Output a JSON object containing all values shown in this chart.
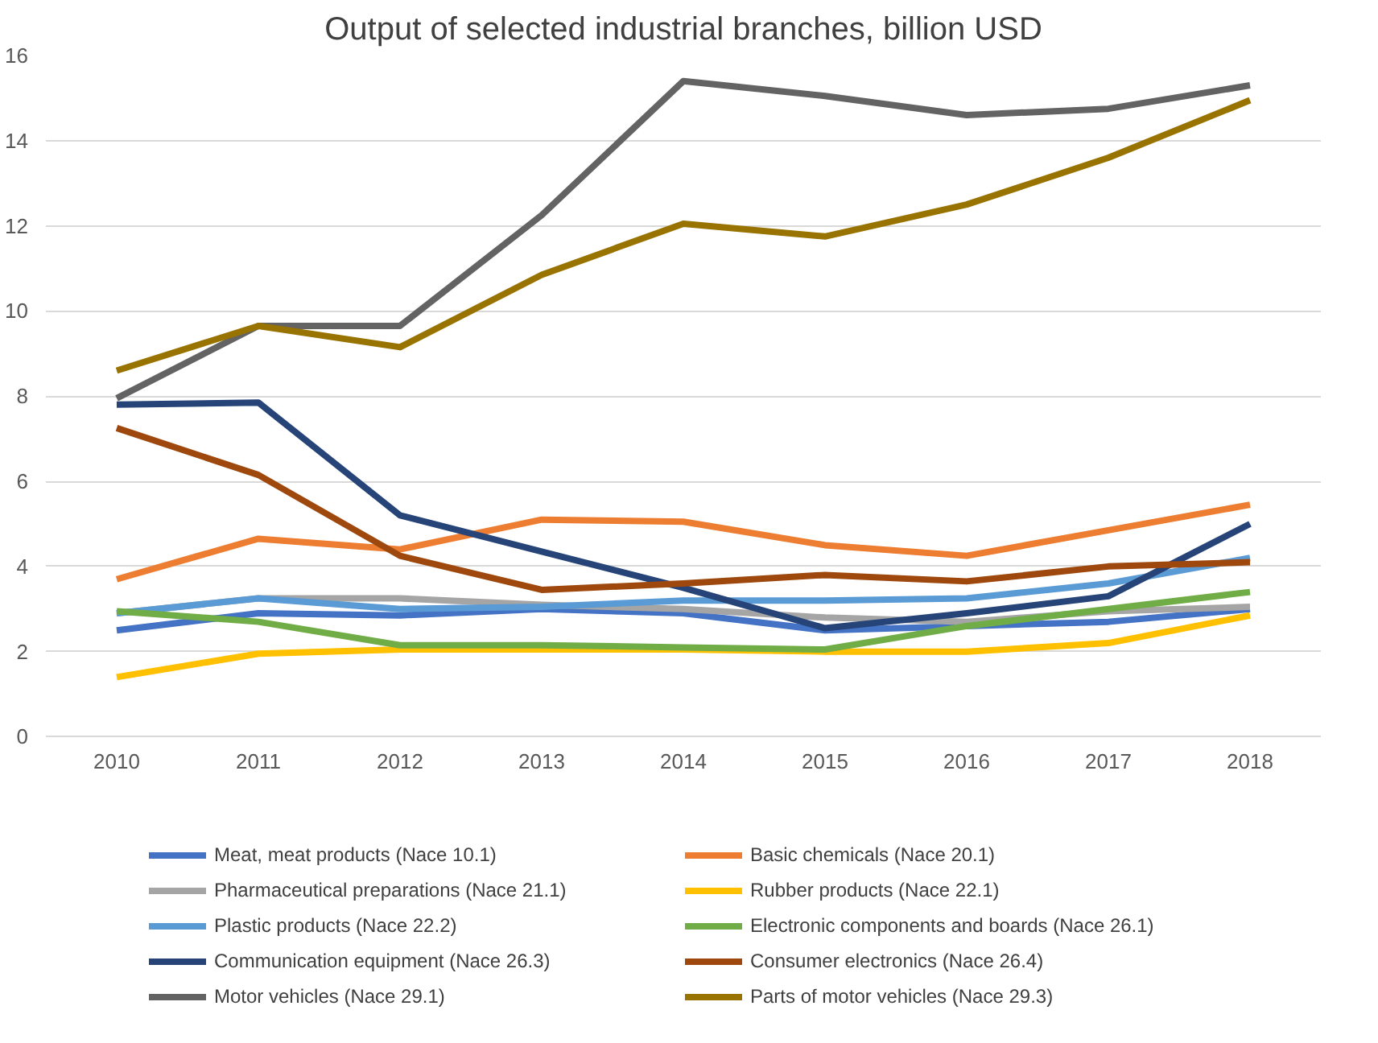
{
  "chart_data": {
    "type": "line",
    "title": "Output of selected industrial branches, billion USD",
    "x": [
      2010,
      2011,
      2012,
      2013,
      2014,
      2015,
      2016,
      2017,
      2018
    ],
    "xticks": [
      2010,
      2011,
      2012,
      2013,
      2014,
      2015,
      2016,
      2017,
      2018
    ],
    "xlim": [
      2009.5,
      2018.5
    ],
    "ylim": [
      0,
      16
    ],
    "yticks": [
      0,
      2,
      4,
      6,
      8,
      10,
      12,
      14,
      16
    ],
    "grid": "y",
    "legend": "bottom",
    "marker": "none",
    "line_style": "solid",
    "series": [
      {
        "name": "Meat, meat products (Nace 10.1)",
        "color": "#4472c4",
        "values": [
          2.5,
          2.9,
          2.85,
          3.0,
          2.9,
          2.5,
          2.6,
          2.7,
          3.0
        ]
      },
      {
        "name": "Basic chemicals (Nace 20.1)",
        "color": "#ed7d31",
        "values": [
          3.7,
          4.65,
          4.4,
          5.1,
          5.05,
          4.5,
          4.25,
          4.85,
          5.45
        ]
      },
      {
        "name": "Pharmaceutical preparations (Nace 21.1)",
        "color": "#a5a5a5",
        "values": [
          2.9,
          3.25,
          3.25,
          3.1,
          3.0,
          2.8,
          2.7,
          2.95,
          3.05
        ]
      },
      {
        "name": "Rubber products (Nace 22.1)",
        "color": "#ffc000",
        "values": [
          1.4,
          1.95,
          2.05,
          2.05,
          2.05,
          2.0,
          2.0,
          2.2,
          2.85
        ]
      },
      {
        "name": "Plastic products (Nace 22.2)",
        "color": "#5b9bd5",
        "values": [
          2.9,
          3.25,
          3.0,
          3.05,
          3.2,
          3.2,
          3.25,
          3.6,
          4.2
        ]
      },
      {
        "name": "Electronic components and boards (Nace 26.1)",
        "color": "#70ad47",
        "values": [
          2.95,
          2.7,
          2.15,
          2.15,
          2.1,
          2.05,
          2.6,
          3.0,
          3.4
        ]
      },
      {
        "name": "Communication equipment (Nace 26.3)",
        "color": "#264478",
        "values": [
          7.8,
          7.85,
          5.2,
          4.35,
          3.5,
          2.55,
          2.9,
          3.3,
          5.0
        ]
      },
      {
        "name": "Consumer electronics (Nace 26.4)",
        "color": "#9e480e",
        "values": [
          7.25,
          6.15,
          4.25,
          3.45,
          3.6,
          3.8,
          3.65,
          4.0,
          4.1
        ]
      },
      {
        "name": "Motor vehicles (Nace 29.1)",
        "color": "#636363",
        "values": [
          7.95,
          9.65,
          9.65,
          12.25,
          15.4,
          15.05,
          14.6,
          14.75,
          15.3
        ]
      },
      {
        "name": "Parts of motor vehicles (Nace 29.3)",
        "color": "#997300",
        "values": [
          8.6,
          9.65,
          9.15,
          10.85,
          12.05,
          11.75,
          12.5,
          13.6,
          14.95
        ]
      }
    ]
  }
}
